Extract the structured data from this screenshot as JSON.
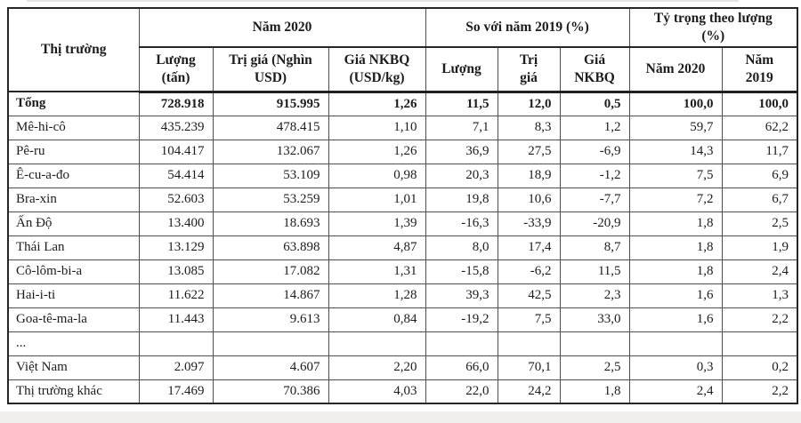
{
  "page": {
    "background_color": "#ffffff",
    "bottom_strip_color": "#f1efec",
    "border_color": "#262626"
  },
  "table": {
    "header_groups": [
      {
        "label": "Thị trường",
        "colspan": 1,
        "rowspan": 2
      },
      {
        "label": "Năm 2020",
        "colspan": 3,
        "rowspan": 1
      },
      {
        "label": "So với năm 2019 (%)",
        "colspan": 3,
        "rowspan": 1
      },
      {
        "label": "Tỷ trọng theo lượng\n(%)",
        "colspan": 2,
        "rowspan": 1
      }
    ],
    "sub_headers": [
      "Lượng\n(tấn)",
      "Trị giá (Nghìn\nUSD)",
      "Giá NKBQ\n(USD/kg)",
      "Lượng",
      "Trị\ngiá",
      "Giá\nNKBQ",
      "Năm 2020",
      "Năm\n2019"
    ],
    "rows": [
      {
        "market": "Tổng",
        "bold": true,
        "values": [
          "728.918",
          "915.995",
          "1,26",
          "11,5",
          "12,0",
          "0,5",
          "100,0",
          "100,0"
        ]
      },
      {
        "market": "Mê-hi-cô",
        "bold": false,
        "values": [
          "435.239",
          "478.415",
          "1,10",
          "7,1",
          "8,3",
          "1,2",
          "59,7",
          "62,2"
        ]
      },
      {
        "market": "Pê-ru",
        "bold": false,
        "values": [
          "104.417",
          "132.067",
          "1,26",
          "36,9",
          "27,5",
          "-6,9",
          "14,3",
          "11,7"
        ]
      },
      {
        "market": "Ê-cu-a-đo",
        "bold": false,
        "values": [
          "54.414",
          "53.109",
          "0,98",
          "20,3",
          "18,9",
          "-1,2",
          "7,5",
          "6,9"
        ]
      },
      {
        "market": "Bra-xin",
        "bold": false,
        "values": [
          "52.603",
          "53.259",
          "1,01",
          "19,8",
          "10,6",
          "-7,7",
          "7,2",
          "6,7"
        ]
      },
      {
        "market": "Ấn Độ",
        "bold": false,
        "values": [
          "13.400",
          "18.693",
          "1,39",
          "-16,3",
          "-33,9",
          "-20,9",
          "1,8",
          "2,5"
        ]
      },
      {
        "market": "Thái Lan",
        "bold": false,
        "values": [
          "13.129",
          "63.898",
          "4,87",
          "8,0",
          "17,4",
          "8,7",
          "1,8",
          "1,9"
        ]
      },
      {
        "market": "Cô-lôm-bi-a",
        "bold": false,
        "values": [
          "13.085",
          "17.082",
          "1,31",
          "-15,8",
          "-6,2",
          "11,5",
          "1,8",
          "2,4"
        ]
      },
      {
        "market": "Hai-i-ti",
        "bold": false,
        "values": [
          "11.622",
          "14.867",
          "1,28",
          "39,3",
          "42,5",
          "2,3",
          "1,6",
          "1,3"
        ]
      },
      {
        "market": "Goa-tê-ma-la",
        "bold": false,
        "values": [
          "11.443",
          "9.613",
          "0,84",
          "-19,2",
          "7,5",
          "33,0",
          "1,6",
          "2,2"
        ]
      },
      {
        "market": "...",
        "bold": false,
        "values": [
          "",
          "",
          "",
          "",
          "",
          "",
          "",
          ""
        ]
      },
      {
        "market": "Việt Nam",
        "bold": false,
        "values": [
          "2.097",
          "4.607",
          "2,20",
          "66,0",
          "70,1",
          "2,5",
          "0,3",
          "0,2"
        ]
      },
      {
        "market": "Thị trường khác",
        "bold": false,
        "values": [
          "17.469",
          "70.386",
          "4,03",
          "22,0",
          "24,2",
          "1,8",
          "2,4",
          "2,2"
        ]
      }
    ]
  },
  "chart_data": {
    "type": "table",
    "title": "",
    "columns": [
      "Thị trường",
      "Năm 2020 - Lượng (tấn)",
      "Năm 2020 - Trị giá (Nghìn USD)",
      "Năm 2020 - Giá NKBQ (USD/kg)",
      "So với năm 2019 (%) - Lượng",
      "So với năm 2019 (%) - Trị giá",
      "So với năm 2019 (%) - Giá NKBQ",
      "Tỷ trọng theo lượng (%) - Năm 2020",
      "Tỷ trọng theo lượng (%) - Năm 2019"
    ],
    "rows": [
      [
        "Tổng",
        "728.918",
        "915.995",
        "1,26",
        "11,5",
        "12,0",
        "0,5",
        "100,0",
        "100,0"
      ],
      [
        "Mê-hi-cô",
        "435.239",
        "478.415",
        "1,10",
        "7,1",
        "8,3",
        "1,2",
        "59,7",
        "62,2"
      ],
      [
        "Pê-ru",
        "104.417",
        "132.067",
        "1,26",
        "36,9",
        "27,5",
        "-6,9",
        "14,3",
        "11,7"
      ],
      [
        "Ê-cu-a-đo",
        "54.414",
        "53.109",
        "0,98",
        "20,3",
        "18,9",
        "-1,2",
        "7,5",
        "6,9"
      ],
      [
        "Bra-xin",
        "52.603",
        "53.259",
        "1,01",
        "19,8",
        "10,6",
        "-7,7",
        "7,2",
        "6,7"
      ],
      [
        "Ấn Độ",
        "13.400",
        "18.693",
        "1,39",
        "-16,3",
        "-33,9",
        "-20,9",
        "1,8",
        "2,5"
      ],
      [
        "Thái Lan",
        "13.129",
        "63.898",
        "4,87",
        "8,0",
        "17,4",
        "8,7",
        "1,8",
        "1,9"
      ],
      [
        "Cô-lôm-bi-a",
        "13.085",
        "17.082",
        "1,31",
        "-15,8",
        "-6,2",
        "11,5",
        "1,8",
        "2,4"
      ],
      [
        "Hai-i-ti",
        "11.622",
        "14.867",
        "1,28",
        "39,3",
        "42,5",
        "2,3",
        "1,6",
        "1,3"
      ],
      [
        "Goa-tê-ma-la",
        "11.443",
        "9.613",
        "0,84",
        "-19,2",
        "7,5",
        "33,0",
        "1,6",
        "2,2"
      ],
      [
        "...",
        "",
        "",
        "",
        "",
        "",
        "",
        "",
        ""
      ],
      [
        "Việt Nam",
        "2.097",
        "4.607",
        "2,20",
        "66,0",
        "70,1",
        "2,5",
        "0,3",
        "0,2"
      ],
      [
        "Thị trường khác",
        "17.469",
        "70.386",
        "4,03",
        "22,0",
        "24,2",
        "1,8",
        "2,4",
        "2,2"
      ]
    ]
  }
}
